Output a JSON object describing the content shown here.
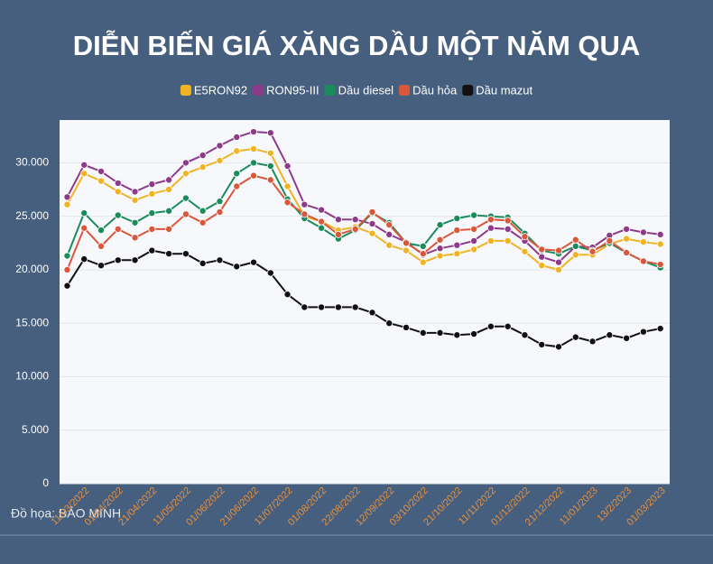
{
  "chart_data": {
    "type": "line",
    "title": "DIỄN BIẾN GIÁ XĂNG DẦU MỘT NĂM QUA",
    "categories": [
      null,
      "11/03/2022",
      null,
      "01/04/2022",
      null,
      "21/04/2022",
      null,
      "11/05/2022",
      null,
      "01/06/2022",
      null,
      "21/06/2022",
      null,
      "11/07/2022",
      null,
      "01/08/2022",
      null,
      "22/08/2022",
      null,
      "12/09/2022",
      null,
      "03/10/2022",
      null,
      "21/10/2022",
      null,
      "11/11/2022",
      null,
      "01/12/2022",
      null,
      "21/12/2022",
      null,
      "11/01/2023",
      null,
      "13/2/2023",
      null,
      "01/03/2023"
    ],
    "series": [
      {
        "name": "E5RON92",
        "color": "#f0b323",
        "values": [
          26100,
          29000,
          28300,
          27300,
          26500,
          27100,
          27500,
          29000,
          29600,
          30200,
          31100,
          31300,
          30900,
          27800,
          25000,
          24500,
          23700,
          24000,
          23400,
          22300,
          21800,
          20700,
          21300,
          21500,
          21900,
          22700,
          22700,
          21700,
          20400,
          20000,
          21400,
          21400,
          22400,
          22900,
          22600,
          22400
        ]
      },
      {
        "name": "RON95-III",
        "color": "#8e3a8a",
        "values": [
          26800,
          29800,
          29200,
          28100,
          27300,
          28000,
          28400,
          30000,
          30700,
          31600,
          32400,
          32900,
          32800,
          29700,
          26100,
          25600,
          24700,
          24700,
          24300,
          23300,
          22600,
          21400,
          22000,
          22300,
          22700,
          23900,
          23800,
          22700,
          21200,
          20700,
          22200,
          22100,
          23200,
          23800,
          23500,
          23300
        ]
      },
      {
        "name": "Dầu diesel",
        "color": "#1a8c5b",
        "values": [
          21300,
          25300,
          23700,
          25100,
          24400,
          25300,
          25500,
          26700,
          25500,
          26400,
          29000,
          30000,
          29700,
          26600,
          24800,
          23900,
          22900,
          23700,
          25300,
          24400,
          22500,
          22200,
          24200,
          24800,
          25100,
          25000,
          24900,
          23400,
          21800,
          21500,
          22200,
          21800,
          22500,
          21600,
          20800,
          20200
        ]
      },
      {
        "name": "Dầu hỏa",
        "color": "#d9573a",
        "values": [
          20000,
          23900,
          22200,
          23800,
          23000,
          23800,
          23800,
          25200,
          24400,
          25400,
          27800,
          28800,
          28400,
          26300,
          25200,
          24500,
          23300,
          23800,
          25400,
          24200,
          22500,
          21500,
          22800,
          23700,
          23800,
          24700,
          24600,
          23100,
          21900,
          21800,
          22800,
          21700,
          22700,
          21600,
          20800,
          20500
        ]
      },
      {
        "name": "Dầu mazut",
        "color": "#111111",
        "values": [
          18500,
          21000,
          20400,
          20900,
          20900,
          21800,
          21500,
          21500,
          20600,
          20900,
          20300,
          20700,
          19700,
          17700,
          16500,
          16500,
          16500,
          16500,
          16000,
          15000,
          14600,
          14100,
          14100,
          13900,
          14000,
          14700,
          14700,
          13900,
          13000,
          12800,
          13700,
          13300,
          13900,
          13600,
          14200,
          14500
        ]
      }
    ],
    "ylim": [
      0,
      34000
    ],
    "yticks": [
      0,
      {
        "value": 5000,
        "label": "5.000"
      },
      {
        "value": 10000,
        "label": "10.000"
      },
      {
        "value": 15000,
        "label": "15.000"
      },
      {
        "value": 20000,
        "label": "20.000"
      },
      {
        "value": 25000,
        "label": "25.000"
      },
      {
        "value": 30000,
        "label": "30.000"
      }
    ],
    "grid": true,
    "source": "Đồ họa: BẢO MINH"
  }
}
